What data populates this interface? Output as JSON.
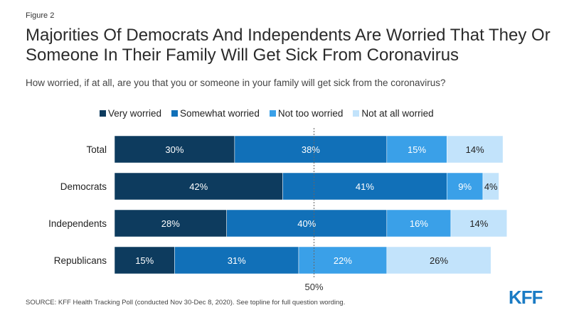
{
  "figure_label": "Figure 2",
  "title": "Majorities Of Democrats And Independents Are Worried That They Or Someone In Their Family Will Get Sick From Coronavirus",
  "subtitle": "How worried, if at all, are you that you or someone in your family will get sick from the coronavirus?",
  "source": "SOURCE: KFF Health Tracking Poll (conducted Nov 30-Dec 8, 2020). See topline for full question wording.",
  "logo": "KFF",
  "colors": {
    "very_worried": "#0d3b5e",
    "somewhat_worried": "#1170b8",
    "not_too_worried": "#3aa0e8",
    "not_at_all_worried": "#c2e3fb"
  },
  "chart_data": {
    "type": "bar",
    "orientation": "horizontal",
    "stacked": true,
    "categories": [
      "Total",
      "Democrats",
      "Independents",
      "Republicans"
    ],
    "series": [
      {
        "name": "Very worried",
        "color": "#0d3b5e",
        "values": [
          30,
          42,
          28,
          15
        ],
        "labels": [
          "30%",
          "42%",
          "28%",
          "15%"
        ]
      },
      {
        "name": "Somewhat worried",
        "color": "#1170b8",
        "values": [
          38,
          41,
          40,
          31
        ],
        "labels": [
          "38%",
          "41%",
          "40%",
          "31%"
        ]
      },
      {
        "name": "Not too worried",
        "color": "#3aa0e8",
        "values": [
          15,
          9,
          16,
          22
        ],
        "labels": [
          "15%",
          "9%",
          "16%",
          "22%"
        ]
      },
      {
        "name": "Not at all worried",
        "color": "#c2e3fb",
        "values": [
          14,
          4,
          14,
          26
        ],
        "labels": [
          "14%",
          "4%",
          "14%",
          "26%"
        ]
      }
    ],
    "reference_line": {
      "value": 50,
      "label": "50%"
    },
    "xlim": [
      0,
      100
    ],
    "legend_position": "top"
  }
}
